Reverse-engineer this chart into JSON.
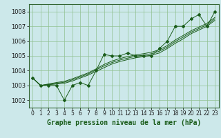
{
  "title": "Graphe pression niveau de la mer (hPa)",
  "background_color": "#cce8ea",
  "grid_color": "#90c090",
  "line_color": "#1a5c1a",
  "ylim": [
    1001.5,
    1008.5
  ],
  "xlim": [
    -0.5,
    23.5
  ],
  "yticks": [
    1002,
    1003,
    1004,
    1005,
    1006,
    1007,
    1008
  ],
  "xticks": [
    0,
    1,
    2,
    3,
    4,
    5,
    6,
    7,
    8,
    9,
    10,
    11,
    12,
    13,
    14,
    15,
    16,
    17,
    18,
    19,
    20,
    21,
    22,
    23
  ],
  "actual": [
    1003.5,
    1003.0,
    1003.0,
    1003.0,
    1002.0,
    1003.0,
    1003.2,
    1003.0,
    1004.0,
    1005.1,
    1005.0,
    1005.0,
    1005.2,
    1005.0,
    1005.0,
    1005.0,
    1005.5,
    1006.0,
    1007.0,
    1007.0,
    1007.5,
    1007.8,
    1007.0,
    1008.0
  ],
  "trend1": [
    1003.5,
    1003.0,
    1003.05,
    1003.1,
    1003.15,
    1003.3,
    1003.5,
    1003.7,
    1003.95,
    1004.2,
    1004.45,
    1004.62,
    1004.75,
    1004.87,
    1004.95,
    1005.05,
    1005.2,
    1005.5,
    1005.85,
    1006.15,
    1006.5,
    1006.75,
    1007.0,
    1007.4
  ],
  "trend2": [
    1003.5,
    1003.0,
    1003.08,
    1003.15,
    1003.22,
    1003.38,
    1003.58,
    1003.78,
    1004.05,
    1004.32,
    1004.55,
    1004.72,
    1004.85,
    1004.97,
    1005.05,
    1005.15,
    1005.32,
    1005.6,
    1005.97,
    1006.27,
    1006.6,
    1006.85,
    1007.1,
    1007.5
  ],
  "trend3": [
    1003.5,
    1003.0,
    1003.1,
    1003.2,
    1003.28,
    1003.45,
    1003.65,
    1003.85,
    1004.12,
    1004.42,
    1004.65,
    1004.82,
    1004.95,
    1005.07,
    1005.15,
    1005.25,
    1005.42,
    1005.7,
    1006.08,
    1006.38,
    1006.7,
    1006.95,
    1007.2,
    1007.6
  ],
  "tick_fontsize": 5.5,
  "xlabel_fontsize": 7
}
